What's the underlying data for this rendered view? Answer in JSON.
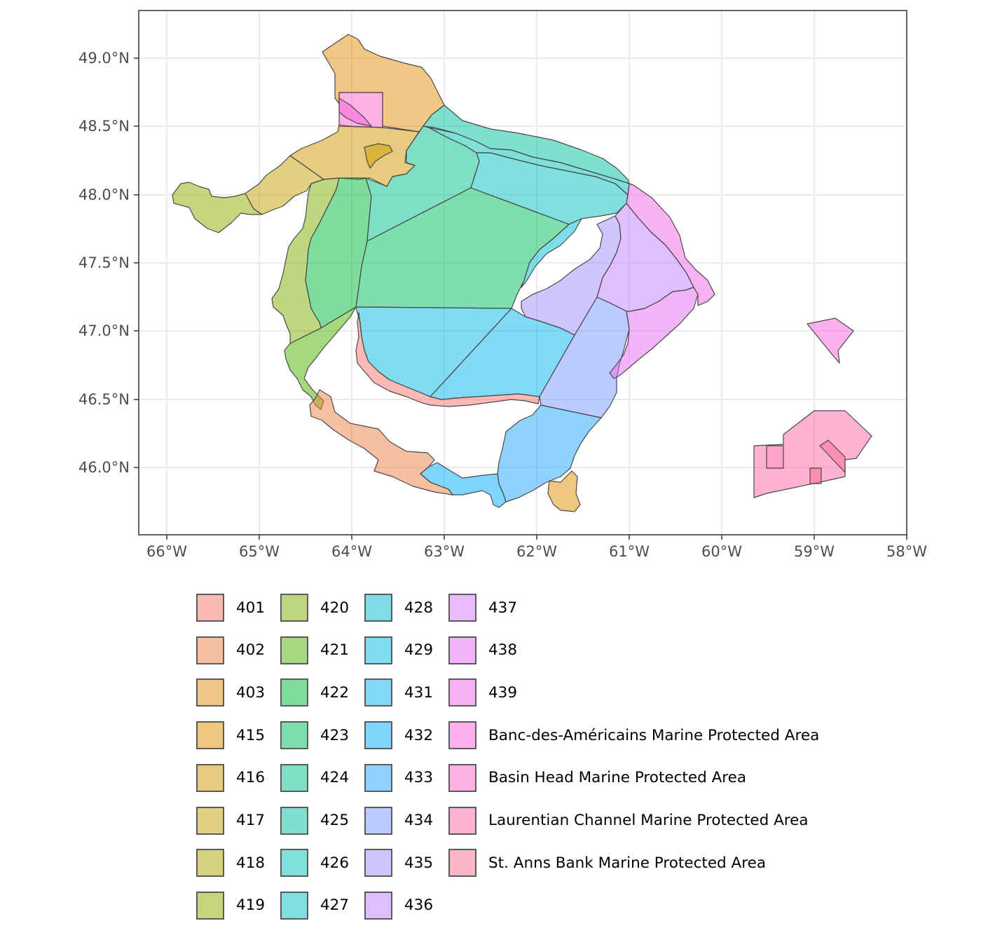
{
  "map": {
    "x_ticks": [
      "66°W",
      "65°W",
      "64°W",
      "63°W",
      "62°W",
      "61°W",
      "60°W",
      "59°W",
      "58°W"
    ],
    "y_ticks": [
      "49.0°N",
      "48.5°N",
      "48.0°N",
      "47.5°N",
      "47.0°N",
      "46.5°N",
      "46.0°N"
    ],
    "legend_items": [
      {
        "label": "401",
        "color": "#F8766D"
      },
      {
        "label": "402",
        "color": "#EE8043"
      },
      {
        "label": "403",
        "color": "#E2900A"
      },
      {
        "label": "415",
        "color": "#DE9100"
      },
      {
        "label": "416",
        "color": "#CF9900"
      },
      {
        "label": "417",
        "color": "#C3A200"
      },
      {
        "label": "418",
        "color": "#AFA500"
      },
      {
        "label": "419",
        "color": "#93AA00"
      },
      {
        "label": "420",
        "color": "#7CAE00"
      },
      {
        "label": "421",
        "color": "#4BB400"
      },
      {
        "label": "422",
        "color": "#00BA38"
      },
      {
        "label": "423",
        "color": "#00BD5C"
      },
      {
        "label": "424",
        "color": "#00C08B"
      },
      {
        "label": "425",
        "color": "#00C1A2"
      },
      {
        "label": "426",
        "color": "#00C0B4"
      },
      {
        "label": "427",
        "color": "#00BFC4"
      },
      {
        "label": "428",
        "color": "#00BCD3"
      },
      {
        "label": "429",
        "color": "#00B9E3"
      },
      {
        "label": "431",
        "color": "#00B4EF"
      },
      {
        "label": "432",
        "color": "#00ABFD"
      },
      {
        "label": "433",
        "color": "#1FA5FF"
      },
      {
        "label": "434",
        "color": "#7997FF"
      },
      {
        "label": "435",
        "color": "#9F8CFF"
      },
      {
        "label": "436",
        "color": "#BF80FF"
      },
      {
        "label": "437",
        "color": "#D775FF"
      },
      {
        "label": "438",
        "color": "#E76BF3"
      },
      {
        "label": "439",
        "color": "#F265E7"
      },
      {
        "label": "Banc-des-Américains Marine Protected Area",
        "color": "#FA62DB"
      },
      {
        "label": "Basin Head Marine Protected Area",
        "color": "#FF63C7"
      },
      {
        "label": "Laurentian Channel Marine Protected Area",
        "color": "#FF67A4"
      },
      {
        "label": "St. Anns Bank Marine Protected Area",
        "color": "#FF6C91"
      }
    ]
  }
}
